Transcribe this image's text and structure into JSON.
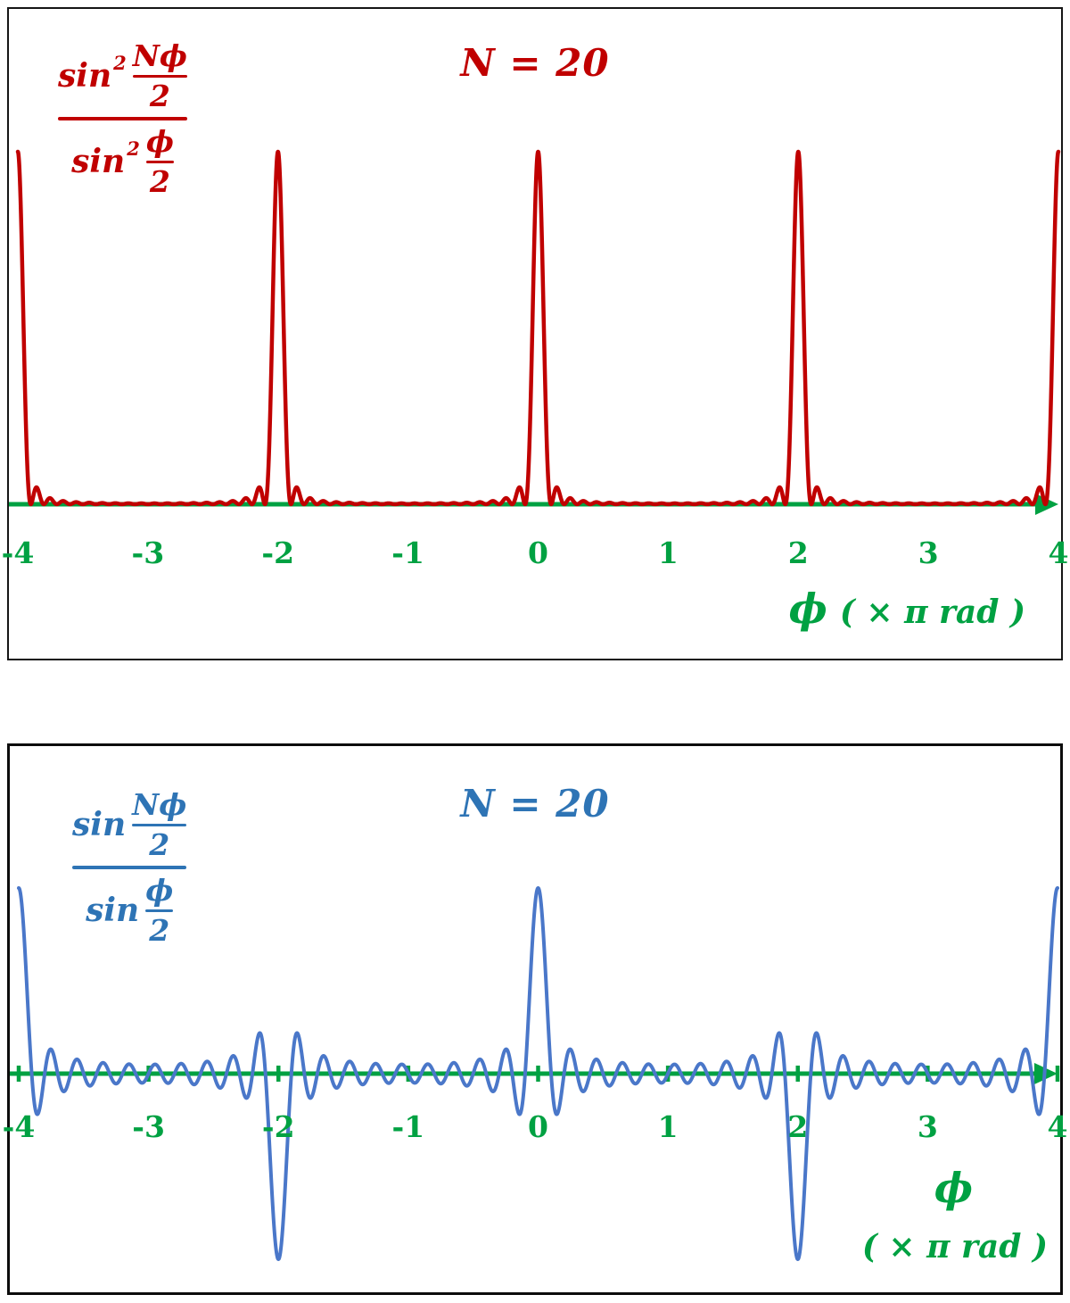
{
  "colors": {
    "red": "#C00000",
    "blue_text": "#2E74B5",
    "blue_curve": "#4A77C9",
    "green": "#00A142",
    "background": "#FFFFFF"
  },
  "top_panel": {
    "title": "N = 20",
    "formula": {
      "fn": "sin",
      "exp": "2",
      "num_top": "Nϕ",
      "num_bot": "2",
      "den_top": "ϕ",
      "den_bot": "2"
    },
    "xlabel_phi": "ϕ",
    "xlabel_rest": "( × π  rad )"
  },
  "bottom_panel": {
    "title": "N = 20",
    "formula": {
      "fn": "sin",
      "num_top": "Nϕ",
      "num_bot": "2",
      "den_top": "ϕ",
      "den_bot": "2"
    },
    "xlabel_phi": "ϕ",
    "xlabel_rest": "( × π  rad )"
  },
  "chart_data": [
    {
      "type": "line",
      "title": "N = 20",
      "series_name": "sin²(Nϕ/2) / sin²(ϕ/2)",
      "N": 20,
      "x_unit": "π rad",
      "xlabel": "ϕ ( × π rad )",
      "x_range": [
        -4,
        4
      ],
      "x_ticks": [
        -4,
        -3,
        -2,
        -1,
        0,
        1,
        2,
        3,
        4
      ],
      "x_tick_labels": [
        "-4",
        "-3",
        "-2",
        "-1",
        "0",
        "1",
        "2",
        "3",
        "4"
      ],
      "y_range": [
        0,
        400
      ],
      "principal_maxima": [
        {
          "x": -4,
          "y": 400
        },
        {
          "x": -2,
          "y": 400
        },
        {
          "x": 0,
          "y": 400
        },
        {
          "x": 2,
          "y": 400
        },
        {
          "x": 4,
          "y": 400
        }
      ],
      "color": "#C00000",
      "axis_color": "#00A142",
      "grid": false,
      "legend": false
    },
    {
      "type": "line",
      "title": "N = 20",
      "series_name": "sin(Nϕ/2) / sin(ϕ/2)",
      "N": 20,
      "x_unit": "π rad",
      "xlabel": "ϕ ( × π rad )",
      "x_range": [
        -4,
        4
      ],
      "x_ticks": [
        -4,
        -3,
        -2,
        -1,
        0,
        1,
        2,
        3,
        4
      ],
      "x_tick_labels": [
        "-4",
        "-3",
        "-2",
        "-1",
        "0",
        "1",
        "2",
        "3",
        "4"
      ],
      "y_range": [
        -20,
        20
      ],
      "principal_extrema": [
        {
          "x": -4,
          "y": 20
        },
        {
          "x": -2,
          "y": -20
        },
        {
          "x": 0,
          "y": 20
        },
        {
          "x": 2,
          "y": -20
        },
        {
          "x": 4,
          "y": 20
        }
      ],
      "color": "#4A77C9",
      "axis_color": "#00A142",
      "grid": false,
      "legend": false
    }
  ]
}
